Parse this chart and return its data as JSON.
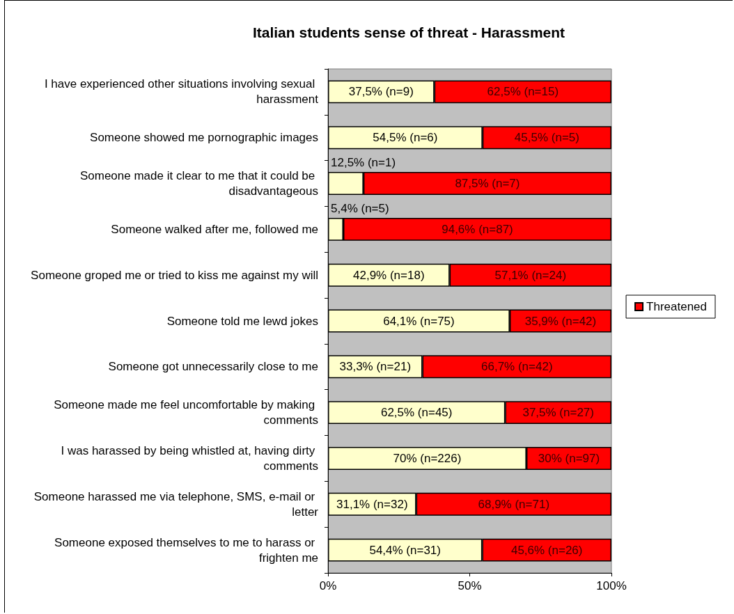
{
  "chart_data": {
    "type": "bar",
    "title": "Italian students sense of threat - Harassment",
    "orientation": "horizontal",
    "stacked": true,
    "grid": false,
    "legend": "right",
    "categories": [
      "I have experienced other situations involving sexual harassment",
      "Someone showed me pornographic images",
      "Someone made it clear to me that it could be disadvantageous",
      "Someone walked after me, followed me",
      "Someone groped me or tried to kiss me against my will",
      "Someone told me lewd jokes",
      "Someone got unnecessarily close to me",
      "Someone made me feel uncomfortable by making comments",
      "I was harassed by being whistled at, having dirty comments",
      "Someone harassed me via telephone, SMS, e-mail or letter",
      "Someone exposed themselves to me to harass or frighten me"
    ],
    "series": [
      {
        "color": "#ffffcc",
        "values": [
          37.5,
          54.5,
          12.5,
          5.4,
          42.9,
          64.1,
          33.3,
          62.5,
          70,
          31.1,
          54.4
        ],
        "value_labels": [
          "37,5% (n=9)",
          "54,5% (n=6)",
          "12,5% (n=1)",
          "5,4% (n=5)",
          "42,9% (n=18)",
          "64,1% (n=75)",
          "33,3% (n=21)",
          "62,5% (n=45)",
          "70% (n=226)",
          "31,1% (n=32)",
          "54,4% (n=31)"
        ]
      },
      {
        "name": "Threatened",
        "color": "#ff0000",
        "values": [
          62.5,
          45.5,
          87.5,
          94.6,
          57.1,
          35.9,
          66.7,
          37.5,
          30,
          68.9,
          45.6
        ],
        "value_labels": [
          "62,5% (n=15)",
          "45,5% (n=5)",
          "87,5% (n=7)",
          "94,6% (n=87)",
          "57,1% (n=24)",
          "35,9% (n=42)",
          "66,7% (n=42)",
          "37,5% (n=27)",
          "30% (n=97)",
          "68,9% (n=71)",
          "45,6% (n=26)"
        ]
      }
    ],
    "xlim": [
      0,
      100
    ],
    "xticks": [
      {
        "value": 0,
        "label": "0%"
      },
      {
        "value": 50,
        "label": "50%"
      },
      {
        "value": 100,
        "label": "100%"
      }
    ]
  }
}
